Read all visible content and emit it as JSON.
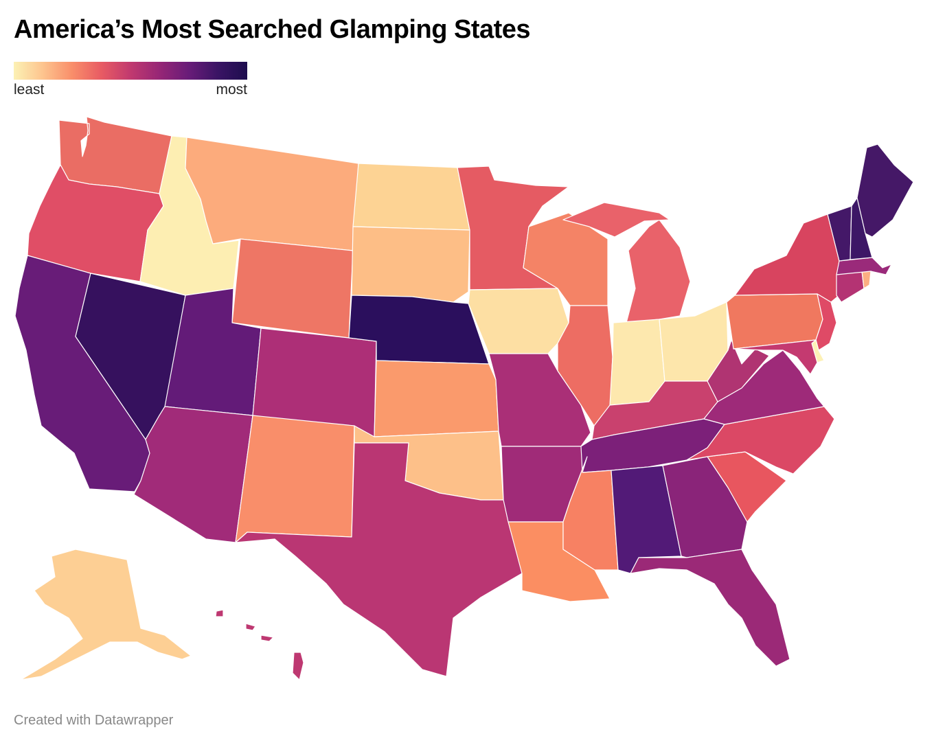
{
  "title": "America’s Most Searched Glamping States",
  "legend": {
    "low_label": "least",
    "high_label": "most",
    "stops": [
      "#fcf1b4",
      "#fdc48e",
      "#f98e6a",
      "#e85b63",
      "#c1396f",
      "#962676",
      "#681c78",
      "#3a1464",
      "#1d0d4e"
    ]
  },
  "credit": "Created with Datawrapper",
  "chart_data": {
    "type": "choropleth",
    "scale": "sequential",
    "states": [
      {
        "id": "WA",
        "color": "#ea6d64"
      },
      {
        "id": "OR",
        "color": "#e04e66"
      },
      {
        "id": "CA",
        "color": "#681c78"
      },
      {
        "id": "NV",
        "color": "#36115e"
      },
      {
        "id": "ID",
        "color": "#fdeeb2"
      },
      {
        "id": "MT",
        "color": "#fcab7c"
      },
      {
        "id": "WY",
        "color": "#ee7665"
      },
      {
        "id": "UT",
        "color": "#631b78"
      },
      {
        "id": "AZ",
        "color": "#a12b79"
      },
      {
        "id": "CO",
        "color": "#ad2f77"
      },
      {
        "id": "NM",
        "color": "#f98e6a"
      },
      {
        "id": "ND",
        "color": "#fdd394"
      },
      {
        "id": "SD",
        "color": "#fdbe86"
      },
      {
        "id": "NE",
        "color": "#2b0f5d"
      },
      {
        "id": "KS",
        "color": "#fa9a6c"
      },
      {
        "id": "OK",
        "color": "#fdc089"
      },
      {
        "id": "TX",
        "color": "#ba3673"
      },
      {
        "id": "MN",
        "color": "#e55b63"
      },
      {
        "id": "IA",
        "color": "#fddfa3"
      },
      {
        "id": "MO",
        "color": "#aa2f77"
      },
      {
        "id": "AR",
        "color": "#a02b78"
      },
      {
        "id": "LA",
        "color": "#fb8e62"
      },
      {
        "id": "WI",
        "color": "#f48366"
      },
      {
        "id": "IL",
        "color": "#ed6d63"
      },
      {
        "id": "MI",
        "color": "#e9626a"
      },
      {
        "id": "IN",
        "color": "#fde8ae"
      },
      {
        "id": "OH",
        "color": "#fde6ab"
      },
      {
        "id": "KY",
        "color": "#c9416e"
      },
      {
        "id": "TN",
        "color": "#7c2079"
      },
      {
        "id": "MS",
        "color": "#f78163"
      },
      {
        "id": "AL",
        "color": "#521a77"
      },
      {
        "id": "GA",
        "color": "#8a2479"
      },
      {
        "id": "FL",
        "color": "#9b2977"
      },
      {
        "id": "SC",
        "color": "#e8565f"
      },
      {
        "id": "NC",
        "color": "#db4865"
      },
      {
        "id": "VA",
        "color": "#9e2a79"
      },
      {
        "id": "WV",
        "color": "#b03472"
      },
      {
        "id": "PA",
        "color": "#f0785f"
      },
      {
        "id": "NY",
        "color": "#d8445f"
      },
      {
        "id": "NJ",
        "color": "#df4a66"
      },
      {
        "id": "DE",
        "color": "#fdf1b6"
      },
      {
        "id": "MD",
        "color": "#c43a70"
      },
      {
        "id": "CT",
        "color": "#b43373"
      },
      {
        "id": "RI",
        "color": "#fcae82"
      },
      {
        "id": "MA",
        "color": "#9a2a7a"
      },
      {
        "id": "VT",
        "color": "#441868"
      },
      {
        "id": "NH",
        "color": "#3d1766"
      },
      {
        "id": "ME",
        "color": "#451867"
      },
      {
        "id": "AK",
        "color": "#fdcf94"
      },
      {
        "id": "HI",
        "color": "#be3871"
      }
    ]
  }
}
